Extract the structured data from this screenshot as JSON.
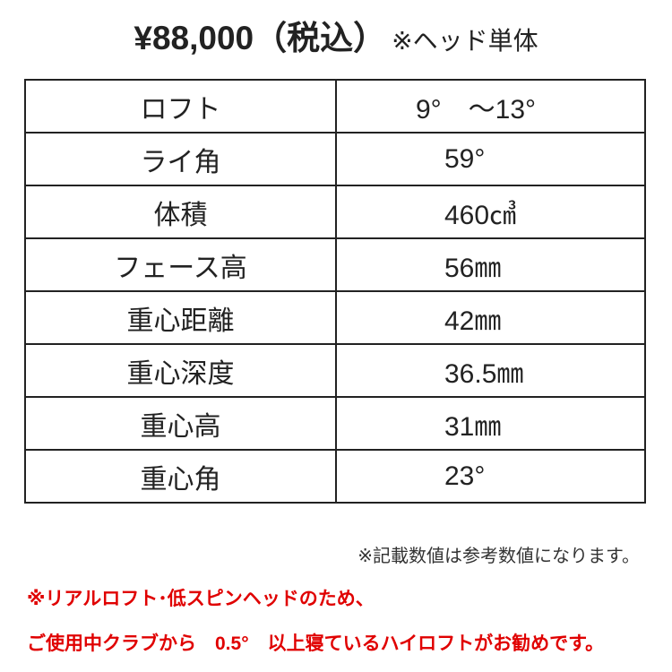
{
  "header": {
    "price": "¥88,000（税込）",
    "note": "※ヘッド単体"
  },
  "specs": [
    {
      "label": "ロフト",
      "value": "9°　～13°"
    },
    {
      "label": "ライ角",
      "value": "59°"
    },
    {
      "label": "体積",
      "value": "460㎤"
    },
    {
      "label": "フェース高",
      "value": "56㎜"
    },
    {
      "label": "重心距離",
      "value": "42㎜"
    },
    {
      "label": "重心深度",
      "value": "36.5㎜"
    },
    {
      "label": "重心高",
      "value": "31㎜"
    },
    {
      "label": "重心角",
      "value": "23°"
    }
  ],
  "disclaimer": "※記載数値は参考数値になります。",
  "recommendation": {
    "line1": "※リアルロフト･低スピンヘッドのため、",
    "line2": "ご使用中クラブから　0.5°　以上寝ているハイロフトがお勧めです。"
  },
  "colors": {
    "accent": "#e00000",
    "text": "#222222"
  }
}
